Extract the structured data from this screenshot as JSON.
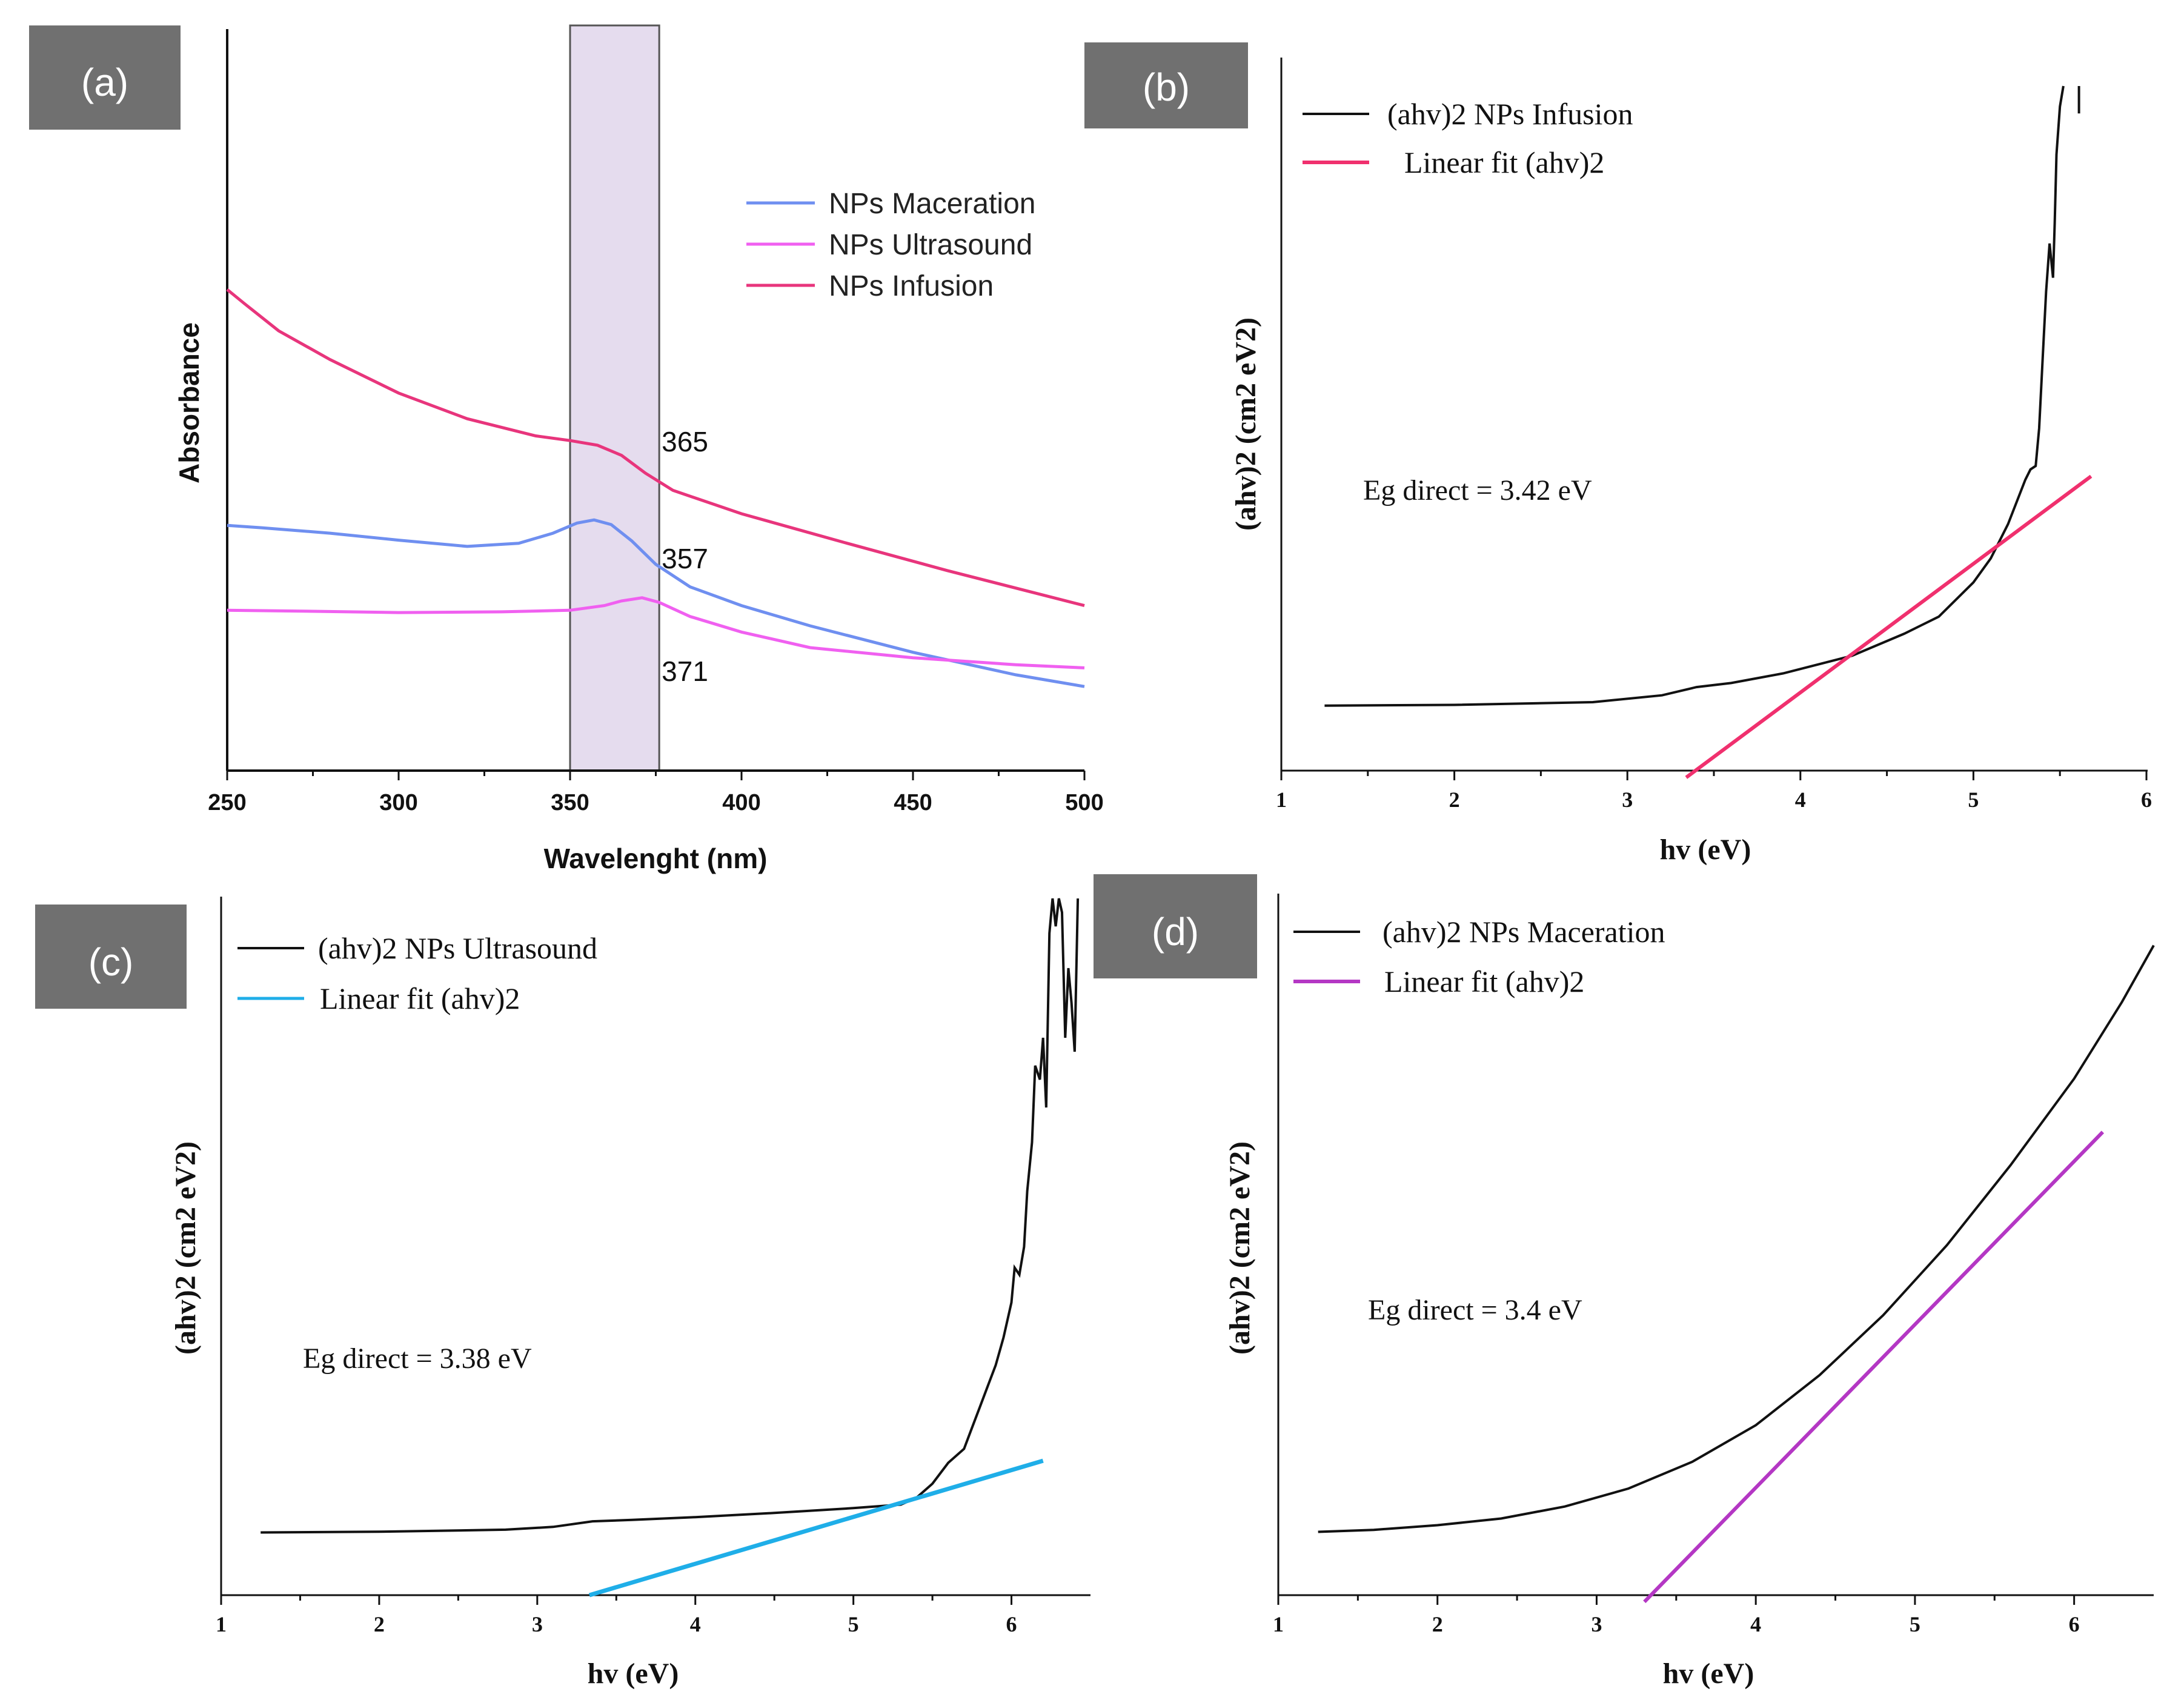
{
  "chart_data": [
    {
      "panel": "(a)",
      "type": "line",
      "xlabel": "Wavelenght (nm)",
      "ylabel": "Absorbance",
      "xlim": [
        250,
        500
      ],
      "ylim": [
        0,
        1.0
      ],
      "xticks": [
        250,
        300,
        350,
        400,
        450,
        500
      ],
      "highlight_band": [
        350,
        376
      ],
      "series": [
        {
          "name": "NPs Maceration",
          "color": "#6f8ff0",
          "x": [
            250,
            260,
            280,
            300,
            320,
            335,
            345,
            352,
            357,
            362,
            368,
            375,
            385,
            400,
            420,
            450,
            480,
            500
          ],
          "y": [
            0.315,
            0.312,
            0.305,
            0.296,
            0.288,
            0.292,
            0.305,
            0.318,
            0.322,
            0.316,
            0.295,
            0.265,
            0.236,
            0.212,
            0.186,
            0.152,
            0.123,
            0.108
          ]
        },
        {
          "name": "NPs Ultrasound",
          "color": "#f060f0",
          "x": [
            250,
            270,
            300,
            330,
            350,
            360,
            365,
            371,
            376,
            385,
            400,
            420,
            450,
            480,
            500
          ],
          "y": [
            0.206,
            0.205,
            0.203,
            0.204,
            0.206,
            0.212,
            0.218,
            0.222,
            0.216,
            0.198,
            0.178,
            0.158,
            0.145,
            0.136,
            0.132
          ]
        },
        {
          "name": "NPs Infusion",
          "color": "#e8357c",
          "x": [
            250,
            255,
            265,
            280,
            300,
            320,
            340,
            350,
            358,
            365,
            372,
            380,
            400,
            430,
            460,
            500
          ],
          "y": [
            0.618,
            0.6,
            0.565,
            0.528,
            0.485,
            0.452,
            0.43,
            0.424,
            0.418,
            0.405,
            0.382,
            0.36,
            0.33,
            0.293,
            0.257,
            0.212
          ]
        }
      ],
      "annotations": [
        {
          "text": "365",
          "x": 376,
          "y": 0.41
        },
        {
          "text": "357",
          "x": 376,
          "y": 0.26
        },
        {
          "text": "371",
          "x": 376,
          "y": 0.115
        }
      ]
    },
    {
      "panel": "(b)",
      "type": "line",
      "xlabel": "hv (eV)",
      "ylabel": "(ahv)2 (cm2 eV2)",
      "xlim": [
        1,
        6
      ],
      "ylim": [
        0,
        1.0
      ],
      "xticks": [
        1,
        2,
        3,
        4,
        5,
        6
      ],
      "series": [
        {
          "name": "(ahv)2 NPs Infusion",
          "color": "#111111",
          "x": [
            1.25,
            2.0,
            2.8,
            3.2,
            3.4,
            3.6,
            3.9,
            4.3,
            4.6,
            4.8,
            5.0,
            5.1,
            5.2,
            5.3,
            5.33,
            5.36,
            5.38,
            5.4,
            5.42,
            5.44,
            5.46,
            5.47,
            5.48,
            5.5,
            5.52
          ],
          "y": [
            0.095,
            0.096,
            0.1,
            0.11,
            0.122,
            0.128,
            0.142,
            0.168,
            0.2,
            0.225,
            0.275,
            0.31,
            0.36,
            0.425,
            0.44,
            0.445,
            0.5,
            0.6,
            0.7,
            0.77,
            0.72,
            0.8,
            0.9,
            0.97,
            1.0
          ]
        },
        {
          "name": "Linear fit (ahv)2",
          "color": "#f0306e",
          "x": [
            3.34,
            5.68
          ],
          "y": [
            -0.01,
            0.43
          ]
        }
      ],
      "extra_segment": {
        "x": [
          5.61,
          5.61
        ],
        "y": [
          0.96,
          1.0
        ]
      },
      "annotation": "Eg direct = 3.42 eV"
    },
    {
      "panel": "(c)",
      "type": "line",
      "xlabel": "hv (eV)",
      "ylabel": "(ahv)2 (cm2 eV2)",
      "xlim": [
        1,
        6.5
      ],
      "ylim": [
        0,
        1.0
      ],
      "xticks": [
        1,
        2,
        3,
        4,
        5,
        6
      ],
      "series": [
        {
          "name": "(ahv)2 NPs Ultrasound",
          "color": "#111111",
          "x": [
            1.25,
            2.0,
            2.8,
            3.1,
            3.35,
            3.6,
            4.0,
            4.5,
            5.0,
            5.3,
            5.4,
            5.5,
            5.6,
            5.7,
            5.75,
            5.8,
            5.85,
            5.9,
            5.95,
            6.0,
            6.02,
            6.05,
            6.08,
            6.1,
            6.13,
            6.15,
            6.18,
            6.2,
            6.22,
            6.24,
            6.26,
            6.28,
            6.3,
            6.32,
            6.34,
            6.36,
            6.38,
            6.4,
            6.42
          ],
          "y": [
            0.09,
            0.091,
            0.094,
            0.098,
            0.106,
            0.108,
            0.112,
            0.118,
            0.125,
            0.13,
            0.14,
            0.16,
            0.19,
            0.21,
            0.24,
            0.27,
            0.3,
            0.33,
            0.37,
            0.42,
            0.47,
            0.46,
            0.5,
            0.58,
            0.65,
            0.76,
            0.74,
            0.8,
            0.7,
            0.95,
            1.0,
            0.96,
            1.0,
            0.98,
            0.8,
            0.9,
            0.85,
            0.78,
            1.0
          ]
        },
        {
          "name": "Linear fit (ahv)2",
          "color": "#1faee8",
          "x": [
            3.33,
            6.2
          ],
          "y": [
            0.0,
            0.193
          ]
        }
      ],
      "annotation": "Eg direct = 3.38 eV"
    },
    {
      "panel": "(d)",
      "type": "line",
      "xlabel": "hv (eV)",
      "ylabel": "(ahv)2 (cm2 eV2)",
      "xlim": [
        1,
        6.5
      ],
      "ylim": [
        0,
        1.0
      ],
      "xticks": [
        1,
        2,
        3,
        4,
        5,
        6
      ],
      "series": [
        {
          "name": "(ahv)2 NPs Maceration",
          "color": "#111111",
          "x": [
            1.25,
            1.6,
            2.0,
            2.4,
            2.8,
            3.2,
            3.6,
            4.0,
            4.4,
            4.8,
            5.2,
            5.6,
            6.0,
            6.3,
            6.5
          ],
          "y": [
            0.095,
            0.098,
            0.105,
            0.115,
            0.133,
            0.16,
            0.2,
            0.255,
            0.33,
            0.42,
            0.525,
            0.645,
            0.775,
            0.89,
            0.975
          ]
        },
        {
          "name": "Linear fit (ahv)2",
          "color": "#b437c4",
          "x": [
            3.3,
            6.18
          ],
          "y": [
            -0.01,
            0.695
          ]
        }
      ],
      "annotation": "Eg direct = 3.4 eV"
    }
  ]
}
